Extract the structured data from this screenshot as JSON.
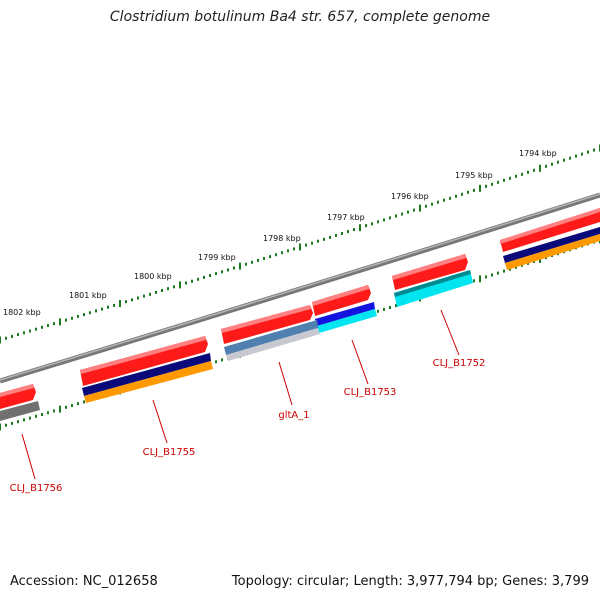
{
  "title": "Clostridium botulinum Ba4 str. 657, complete genome",
  "footer": {
    "accession": "Accession: NC_012658",
    "summary": "Topology: circular; Length: 3,977,794 bp; Genes: 3,799"
  },
  "colors": {
    "backbone": "#8a8a8a",
    "ticks": "#1e7a1e",
    "forward_cds": "#ff1a1a",
    "label": "#cc0000",
    "dark_navy": "#0a0a7a",
    "orange": "#ff9900",
    "blue": "#1414e0",
    "cyan": "#00e5f0",
    "steel": "#5080b0",
    "gray": "#707070"
  },
  "scale_labels": [
    "1794 kbp",
    "1795 kbp",
    "1796 kbp",
    "1797 kbp",
    "1798 kbp",
    "1799 kbp",
    "1800 kbp",
    "1801 kbp",
    "1802 kbp"
  ],
  "gene_labels": [
    "CLJ_B1752",
    "CLJ_B1753",
    "gltA_1",
    "CLJ_B1755",
    "CLJ_B1756"
  ]
}
